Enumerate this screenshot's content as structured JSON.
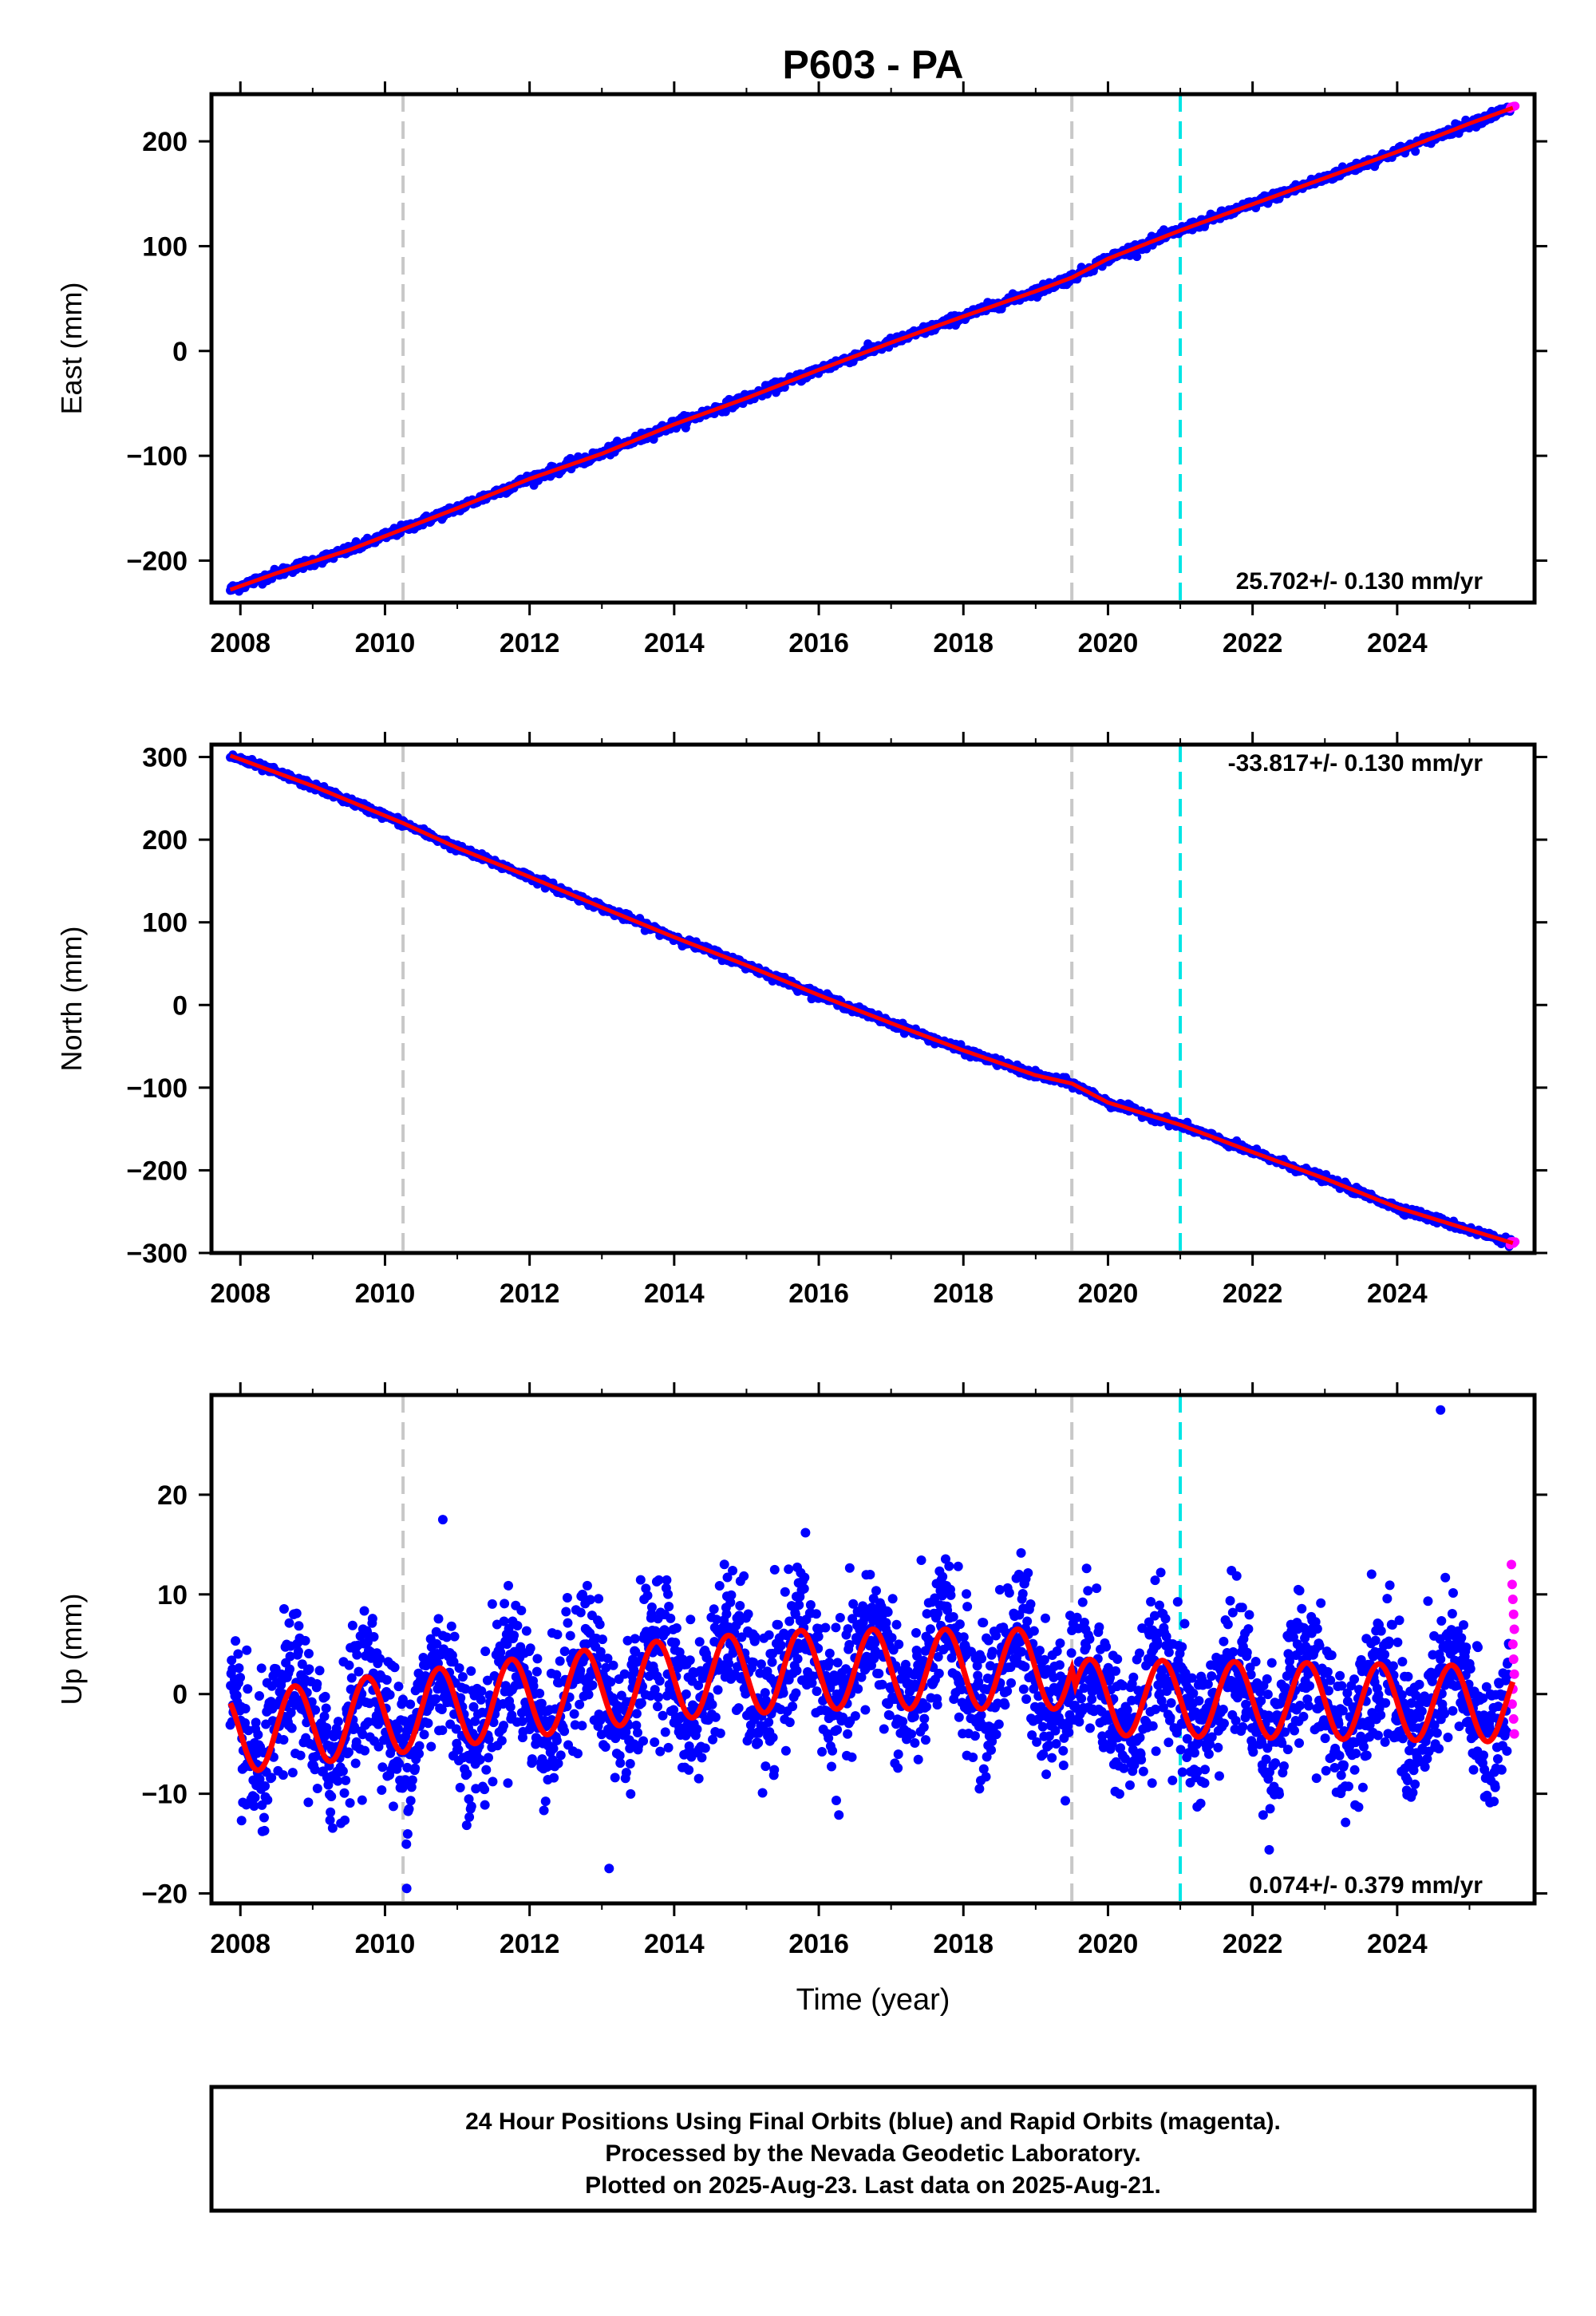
{
  "title": "P603 - PA",
  "xlabel": "Time (year)",
  "colors": {
    "final_orbits": "#0000ff",
    "rapid_orbits": "#ff00ff",
    "model": "#ff0000",
    "equipment_change": "#c8c8c8",
    "earthquake": "#00e5e5"
  },
  "notes": [
    "24 Hour Positions Using Final Orbits (blue) and Rapid Orbits (magenta).",
    "Processed by the Nevada Geodetic Laboratory.",
    "Plotted on 2025-Aug-23. Last data on 2025-Aug-21."
  ],
  "chart_data": [
    {
      "type": "scatter",
      "ylabel": "East (mm)",
      "rate_label": "25.702+/- 0.130 mm/yr",
      "xlim": [
        2007.6,
        2025.9
      ],
      "ylim": [
        -240,
        245
      ],
      "xticks": [
        2008,
        2010,
        2012,
        2014,
        2016,
        2018,
        2020,
        2022,
        2024
      ],
      "yticks": [
        -200,
        -100,
        0,
        100,
        200
      ],
      "ytick_labels": [
        "−200",
        "−100",
        "0",
        "100",
        "200"
      ],
      "grey_lines": [
        2010.25,
        2019.5
      ],
      "cyan_lines": [
        2021.0
      ],
      "series": [
        {
          "x": [
            2007.85,
            2008.5,
            2009.5,
            2010.25,
            2011.0,
            2012.0,
            2013.0,
            2014.0,
            2015.0,
            2016.0,
            2017.0,
            2018.0,
            2019.0,
            2019.5,
            2020.0,
            2021.0,
            2022.0,
            2023.0,
            2024.0,
            2025.0,
            2025.6
          ],
          "y": [
            -228,
            -212,
            -190,
            -170,
            -150,
            -122,
            -98,
            -70,
            -45,
            -18,
            8,
            33,
            57,
            70,
            88,
            115,
            140,
            165,
            190,
            217,
            232
          ]
        }
      ]
    },
    {
      "type": "scatter",
      "ylabel": "North (mm)",
      "rate_label": "-33.817+/- 0.130 mm/yr",
      "xlim": [
        2007.6,
        2025.9
      ],
      "ylim": [
        -300,
        315
      ],
      "xticks": [
        2008,
        2010,
        2012,
        2014,
        2016,
        2018,
        2020,
        2022,
        2024
      ],
      "yticks": [
        -300,
        -200,
        -100,
        0,
        100,
        200,
        300
      ],
      "ytick_labels": [
        "−300",
        "−200",
        "−100",
        "0",
        "100",
        "200",
        "300"
      ],
      "grey_lines": [
        2010.25,
        2019.5
      ],
      "cyan_lines": [
        2021.0
      ],
      "series": [
        {
          "x": [
            2007.85,
            2009.0,
            2010.25,
            2011.0,
            2012.0,
            2013.0,
            2014.0,
            2015.0,
            2016.0,
            2017.0,
            2018.0,
            2019.0,
            2019.5,
            2020.0,
            2021.0,
            2022.0,
            2023.0,
            2024.0,
            2025.0,
            2025.6
          ],
          "y": [
            302,
            265,
            220,
            190,
            155,
            118,
            82,
            48,
            12,
            -22,
            -55,
            -85,
            -95,
            -118,
            -145,
            -178,
            -210,
            -245,
            -272,
            -288
          ]
        }
      ]
    },
    {
      "type": "scatter",
      "ylabel": "Up (mm)",
      "rate_label": "0.074+/- 0.379 mm/yr",
      "xlim": [
        2007.6,
        2025.9
      ],
      "ylim": [
        -21,
        30
      ],
      "xticks": [
        2008,
        2010,
        2012,
        2014,
        2016,
        2018,
        2020,
        2022,
        2024
      ],
      "yticks": [
        -20,
        -10,
        0,
        10,
        20
      ],
      "ytick_labels": [
        "−20",
        "−10",
        "0",
        "10",
        "20"
      ],
      "grey_lines": [
        2010.25,
        2019.5
      ],
      "cyan_lines": [
        2021.0
      ],
      "model": {
        "amplitude_before": 4.0,
        "amplitude_after": 3.8,
        "offset_points": [
          [
            2007.85,
            -4.0
          ],
          [
            2014.0,
            1.5
          ],
          [
            2016.0,
            2.5
          ],
          [
            2019.5,
            2.5
          ],
          [
            2019.55,
            -0.3
          ],
          [
            2025.6,
            -1.0
          ]
        ]
      },
      "outliers": [
        {
          "x": 2024.6,
          "y": 28.5
        },
        {
          "x": 2010.8,
          "y": 17.5
        },
        {
          "x": 2010.3,
          "y": -19.5
        },
        {
          "x": 2013.1,
          "y": -17.5
        }
      ],
      "rapid_points": [
        {
          "x": 2025.58,
          "y": 13.0
        },
        {
          "x": 2025.59,
          "y": 11.0
        },
        {
          "x": 2025.6,
          "y": 9.5
        },
        {
          "x": 2025.61,
          "y": 8.0
        },
        {
          "x": 2025.62,
          "y": 6.5
        },
        {
          "x": 2025.6,
          "y": 5.0
        },
        {
          "x": 2025.61,
          "y": 3.5
        },
        {
          "x": 2025.62,
          "y": 2.0
        },
        {
          "x": 2025.6,
          "y": 0.5
        },
        {
          "x": 2025.59,
          "y": -1.0
        },
        {
          "x": 2025.61,
          "y": -2.5
        },
        {
          "x": 2025.62,
          "y": -4.0
        }
      ],
      "scatter_sd": 3.6
    }
  ]
}
